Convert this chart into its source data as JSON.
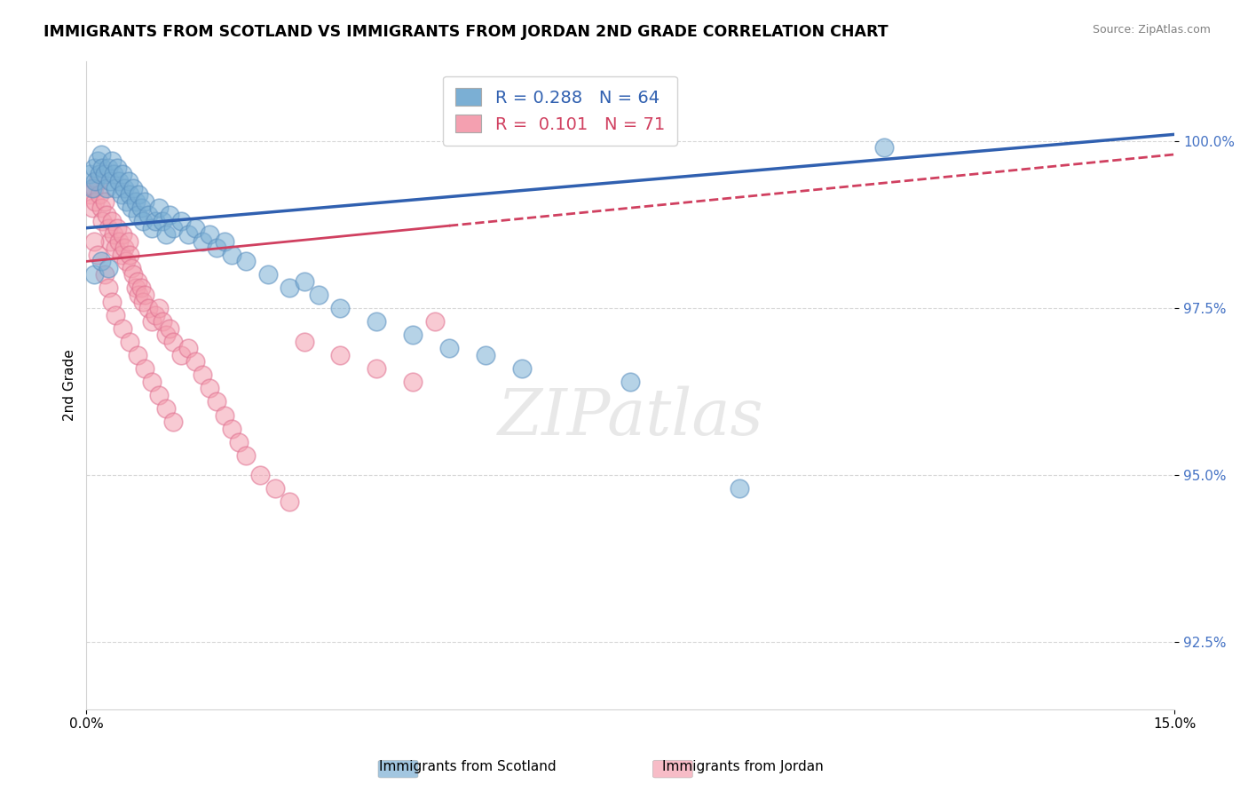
{
  "title": "IMMIGRANTS FROM SCOTLAND VS IMMIGRANTS FROM JORDAN 2ND GRADE CORRELATION CHART",
  "source": "Source: ZipAtlas.com",
  "ylabel": "2nd Grade",
  "y_ticks": [
    92.5,
    95.0,
    97.5,
    100.0
  ],
  "y_tick_labels": [
    "92.5%",
    "95.0%",
    "97.5%",
    "100.0%"
  ],
  "xlim": [
    0.0,
    15.0
  ],
  "ylim": [
    91.5,
    101.2
  ],
  "scotland_color": "#7bafd4",
  "jordan_color": "#f4a0b0",
  "scotland_edge": "#5a8fbf",
  "jordan_edge": "#e07090",
  "trend_scotland_color": "#3060b0",
  "trend_jordan_color": "#d04060",
  "scotland_R": 0.288,
  "scotland_N": 64,
  "jordan_R": 0.101,
  "jordan_N": 71,
  "scotland_line_x0": 0.0,
  "scotland_line_y0": 98.7,
  "scotland_line_x1": 15.0,
  "scotland_line_y1": 100.1,
  "jordan_line_x0": 0.0,
  "jordan_line_y0": 98.2,
  "jordan_line_x1": 15.0,
  "jordan_line_y1": 99.8,
  "jordan_solid_end": 5.0,
  "scotland_scatter_x": [
    0.05,
    0.08,
    0.1,
    0.12,
    0.15,
    0.18,
    0.2,
    0.22,
    0.25,
    0.28,
    0.3,
    0.32,
    0.35,
    0.38,
    0.4,
    0.42,
    0.45,
    0.48,
    0.5,
    0.52,
    0.55,
    0.58,
    0.6,
    0.62,
    0.65,
    0.68,
    0.7,
    0.72,
    0.75,
    0.78,
    0.8,
    0.85,
    0.9,
    0.95,
    1.0,
    1.05,
    1.1,
    1.15,
    1.2,
    1.3,
    1.4,
    1.5,
    1.6,
    1.7,
    1.8,
    1.9,
    2.0,
    2.2,
    2.5,
    2.8,
    3.0,
    3.2,
    3.5,
    4.0,
    4.5,
    5.0,
    5.5,
    6.0,
    7.5,
    9.0,
    0.1,
    0.2,
    0.3,
    11.0
  ],
  "scotland_scatter_y": [
    99.5,
    99.3,
    99.6,
    99.4,
    99.7,
    99.5,
    99.8,
    99.6,
    99.5,
    99.3,
    99.6,
    99.4,
    99.7,
    99.5,
    99.3,
    99.6,
    99.4,
    99.2,
    99.5,
    99.3,
    99.1,
    99.4,
    99.2,
    99.0,
    99.3,
    99.1,
    98.9,
    99.2,
    99.0,
    98.8,
    99.1,
    98.9,
    98.7,
    98.8,
    99.0,
    98.8,
    98.6,
    98.9,
    98.7,
    98.8,
    98.6,
    98.7,
    98.5,
    98.6,
    98.4,
    98.5,
    98.3,
    98.2,
    98.0,
    97.8,
    97.9,
    97.7,
    97.5,
    97.3,
    97.1,
    96.9,
    96.8,
    96.6,
    96.4,
    94.8,
    98.0,
    98.2,
    98.1,
    99.9
  ],
  "jordan_scatter_x": [
    0.05,
    0.08,
    0.1,
    0.12,
    0.15,
    0.18,
    0.2,
    0.22,
    0.25,
    0.28,
    0.3,
    0.32,
    0.35,
    0.38,
    0.4,
    0.42,
    0.45,
    0.48,
    0.5,
    0.52,
    0.55,
    0.58,
    0.6,
    0.62,
    0.65,
    0.68,
    0.7,
    0.72,
    0.75,
    0.78,
    0.8,
    0.85,
    0.9,
    0.95,
    1.0,
    1.05,
    1.1,
    1.15,
    1.2,
    1.3,
    1.4,
    1.5,
    1.6,
    1.7,
    1.8,
    1.9,
    2.0,
    2.1,
    2.2,
    2.4,
    2.6,
    2.8,
    3.0,
    3.5,
    4.0,
    4.5,
    0.1,
    0.15,
    0.25,
    0.3,
    0.35,
    0.4,
    0.5,
    0.6,
    0.7,
    0.8,
    0.9,
    1.0,
    1.1,
    1.2,
    4.8
  ],
  "jordan_scatter_y": [
    99.2,
    99.0,
    99.3,
    99.1,
    99.4,
    99.2,
    99.0,
    98.8,
    99.1,
    98.9,
    98.7,
    98.5,
    98.8,
    98.6,
    98.4,
    98.7,
    98.5,
    98.3,
    98.6,
    98.4,
    98.2,
    98.5,
    98.3,
    98.1,
    98.0,
    97.8,
    97.9,
    97.7,
    97.8,
    97.6,
    97.7,
    97.5,
    97.3,
    97.4,
    97.5,
    97.3,
    97.1,
    97.2,
    97.0,
    96.8,
    96.9,
    96.7,
    96.5,
    96.3,
    96.1,
    95.9,
    95.7,
    95.5,
    95.3,
    95.0,
    94.8,
    94.6,
    97.0,
    96.8,
    96.6,
    96.4,
    98.5,
    98.3,
    98.0,
    97.8,
    97.6,
    97.4,
    97.2,
    97.0,
    96.8,
    96.6,
    96.4,
    96.2,
    96.0,
    95.8,
    97.3
  ]
}
